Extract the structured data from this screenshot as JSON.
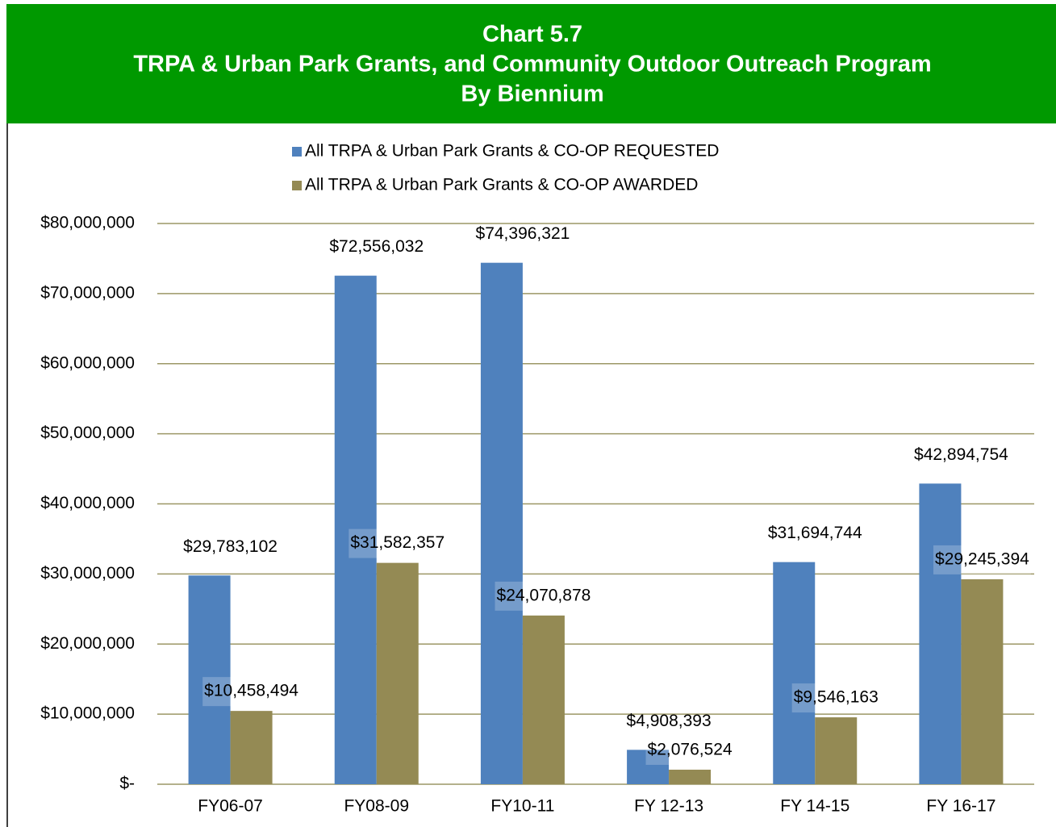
{
  "chart_data": {
    "type": "bar",
    "title": [
      "Chart 5.7",
      "TRPA & Urban Park Grants, and Community Outdoor Outreach Program",
      "By Biennium"
    ],
    "categories": [
      "FY06-07",
      "FY08-09",
      "FY10-11",
      "FY 12-13",
      "FY 14-15",
      "FY 16-17"
    ],
    "series": [
      {
        "name": "All TRPA & Urban Park Grants & CO-OP REQUESTED",
        "color": "#4f81bd",
        "values": [
          29783102,
          72556032,
          74396321,
          4908393,
          31694744,
          42894754
        ],
        "value_labels": [
          "$29,783,102",
          "$72,556,032",
          "$74,396,321",
          "$4,908,393",
          "$31,694,744",
          "$42,894,754"
        ]
      },
      {
        "name": "All TRPA & Urban Park Grants & CO-OP AWARDED",
        "color": "#948a54",
        "values": [
          10458494,
          31582357,
          24070878,
          2076524,
          9546163,
          29245394
        ],
        "value_labels": [
          "$10,458,494",
          "$31,582,357",
          "$24,070,878",
          "$2,076,524",
          "$9,546,163",
          "$29,245,394"
        ]
      }
    ],
    "ylim": [
      0,
      80000000
    ],
    "yticks": [
      {
        "value": 0,
        "label": "$-"
      },
      {
        "value": 10000000,
        "label": "$10,000,000"
      },
      {
        "value": 20000000,
        "label": "$20,000,000"
      },
      {
        "value": 30000000,
        "label": "$30,000,000"
      },
      {
        "value": 40000000,
        "label": "$40,000,000"
      },
      {
        "value": 50000000,
        "label": "$50,000,000"
      },
      {
        "value": 60000000,
        "label": "$60,000,000"
      },
      {
        "value": 70000000,
        "label": "$70,000,000"
      },
      {
        "value": 80000000,
        "label": "$80,000,000"
      }
    ],
    "grid": true,
    "legend": "top"
  }
}
